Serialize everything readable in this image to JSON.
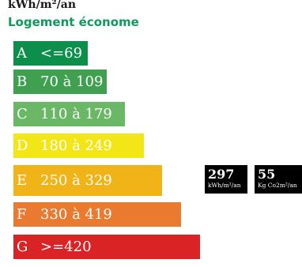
{
  "header": {
    "unit": "kWh/m²/an",
    "title": "Logement économe",
    "title_color": "#0d9a5c"
  },
  "classes": [
    {
      "letter": "A",
      "range": "<=69",
      "color": "#0c8f4a",
      "text_color": "#ffffff"
    },
    {
      "letter": "B",
      "range": "70 à 109",
      "color": "#3fa14f",
      "text_color": "#ffffff"
    },
    {
      "letter": "C",
      "range": "110 à 179",
      "color": "#6ab865",
      "text_color": "#ffffff"
    },
    {
      "letter": "D",
      "range": "180 à 249",
      "color": "#f2e616",
      "text_color": "#ffffff"
    },
    {
      "letter": "E",
      "range": "250 à 329",
      "color": "#f0b418",
      "text_color": "#ffffff"
    },
    {
      "letter": "F",
      "range": "330 à 419",
      "color": "#ea7a30",
      "text_color": "#ffffff"
    },
    {
      "letter": "G",
      "range": ">=420",
      "color": "#d92324",
      "text_color": "#ffffff"
    }
  ],
  "badges": {
    "energy": {
      "value": "297",
      "unit": "kWh/m²/an"
    },
    "emissions": {
      "value": "55",
      "unit": "Kg Co2m²/an"
    }
  }
}
